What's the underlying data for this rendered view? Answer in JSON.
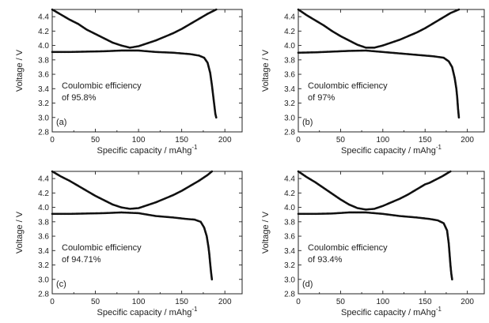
{
  "chart_data": [
    {
      "type": "scatter",
      "panel_label": "(a)",
      "annotation": [
        "Coulombic efficiency",
        "of 95.8%"
      ],
      "xlabel": "Specific capacity / mAhg",
      "xlabel_sup": "-1",
      "ylabel": "Voltage / V",
      "xlim": [
        0,
        220
      ],
      "ylim": [
        2.8,
        4.5
      ],
      "xticks": [
        "0",
        "50",
        "100",
        "150",
        "200"
      ],
      "yticks": [
        "2.8",
        "3.0",
        "3.2",
        "3.4",
        "3.6",
        "3.8",
        "4.0",
        "4.2",
        "4.4"
      ],
      "grid": false,
      "legend": "none",
      "series": [
        {
          "x": [
            0,
            20,
            40,
            60,
            80,
            100,
            120,
            140,
            160,
            170,
            176,
            180,
            183,
            185,
            186,
            187,
            188,
            189,
            190
          ],
          "y": [
            3.91,
            3.91,
            3.915,
            3.92,
            3.93,
            3.93,
            3.91,
            3.9,
            3.88,
            3.86,
            3.83,
            3.76,
            3.62,
            3.45,
            3.35,
            3.25,
            3.15,
            3.05,
            3.0
          ]
        },
        {
          "x": [
            0,
            10,
            20,
            30,
            40,
            50,
            60,
            70,
            80,
            90,
            100,
            110,
            120,
            130,
            140,
            150,
            160,
            170,
            180,
            190
          ],
          "y": [
            4.5,
            4.43,
            4.36,
            4.3,
            4.22,
            4.16,
            4.1,
            4.04,
            4.0,
            3.97,
            3.99,
            4.03,
            4.07,
            4.12,
            4.17,
            4.23,
            4.3,
            4.37,
            4.44,
            4.5
          ]
        }
      ]
    },
    {
      "type": "scatter",
      "panel_label": "(b)",
      "annotation": [
        "Coulombic efficiency",
        "of 97%"
      ],
      "xlabel": "Specific capacity / mAhg",
      "xlabel_sup": "-1",
      "ylabel": "Voltage / V",
      "xlim": [
        0,
        220
      ],
      "ylim": [
        2.8,
        4.5
      ],
      "xticks": [
        "0",
        "50",
        "100",
        "150",
        "200"
      ],
      "yticks": [
        "2.8",
        "3.0",
        "3.2",
        "3.4",
        "3.6",
        "3.8",
        "4.0",
        "4.2",
        "4.4"
      ],
      "grid": false,
      "legend": "none",
      "series": [
        {
          "x": [
            0,
            20,
            40,
            60,
            80,
            100,
            120,
            140,
            160,
            172,
            178,
            182,
            185,
            187,
            188,
            189,
            190
          ],
          "y": [
            3.9,
            3.905,
            3.915,
            3.925,
            3.93,
            3.91,
            3.89,
            3.87,
            3.85,
            3.83,
            3.78,
            3.7,
            3.55,
            3.4,
            3.28,
            3.12,
            3.0
          ]
        },
        {
          "x": [
            0,
            10,
            20,
            30,
            40,
            50,
            60,
            70,
            80,
            90,
            100,
            110,
            120,
            130,
            140,
            150,
            160,
            170,
            180,
            190
          ],
          "y": [
            4.5,
            4.42,
            4.35,
            4.28,
            4.2,
            4.13,
            4.07,
            4.01,
            3.97,
            3.97,
            4.0,
            4.04,
            4.08,
            4.13,
            4.18,
            4.24,
            4.31,
            4.38,
            4.45,
            4.5
          ]
        }
      ]
    },
    {
      "type": "scatter",
      "panel_label": "(c)",
      "annotation": [
        "Coulombic efficiency",
        "of 94.71%"
      ],
      "xlabel": "Specific capacity / mAhg",
      "xlabel_sup": "-1",
      "ylabel": "Voltage / V",
      "xlim": [
        0,
        220
      ],
      "ylim": [
        2.8,
        4.5
      ],
      "xticks": [
        "0",
        "50",
        "100",
        "150",
        "200"
      ],
      "yticks": [
        "2.8",
        "3.0",
        "3.2",
        "3.4",
        "3.6",
        "3.8",
        "4.0",
        "4.2",
        "4.4"
      ],
      "grid": false,
      "legend": "none",
      "series": [
        {
          "x": [
            0,
            20,
            40,
            60,
            80,
            100,
            120,
            140,
            155,
            165,
            172,
            176,
            179,
            181,
            182,
            183,
            184,
            185
          ],
          "y": [
            3.91,
            3.91,
            3.915,
            3.92,
            3.93,
            3.92,
            3.88,
            3.86,
            3.84,
            3.83,
            3.8,
            3.72,
            3.6,
            3.45,
            3.35,
            3.22,
            3.1,
            3.0
          ]
        },
        {
          "x": [
            0,
            10,
            20,
            30,
            40,
            50,
            60,
            70,
            80,
            90,
            100,
            110,
            120,
            130,
            140,
            150,
            160,
            170,
            180,
            185
          ],
          "y": [
            4.5,
            4.43,
            4.37,
            4.3,
            4.23,
            4.16,
            4.1,
            4.04,
            4.0,
            3.98,
            3.99,
            4.03,
            4.07,
            4.12,
            4.17,
            4.23,
            4.3,
            4.37,
            4.45,
            4.5
          ]
        }
      ]
    },
    {
      "type": "scatter",
      "panel_label": "(d)",
      "annotation": [
        "Coulombic efficiency",
        "of 93.4%"
      ],
      "xlabel": "Specific capacity / mAhg",
      "xlabel_sup": "-1",
      "ylabel": "Voltage / V",
      "xlim": [
        0,
        220
      ],
      "ylim": [
        2.8,
        4.5
      ],
      "xticks": [
        "0",
        "50",
        "100",
        "150",
        "200"
      ],
      "yticks": [
        "2.8",
        "3.0",
        "3.2",
        "3.4",
        "3.6",
        "3.8",
        "4.0",
        "4.2",
        "4.4"
      ],
      "grid": false,
      "legend": "none",
      "series": [
        {
          "x": [
            0,
            20,
            40,
            60,
            80,
            100,
            120,
            140,
            155,
            165,
            172,
            176,
            178,
            179,
            180,
            181,
            182
          ],
          "y": [
            3.91,
            3.91,
            3.915,
            3.93,
            3.93,
            3.91,
            3.88,
            3.86,
            3.84,
            3.82,
            3.78,
            3.68,
            3.5,
            3.35,
            3.2,
            3.08,
            3.0
          ]
        },
        {
          "x": [
            0,
            10,
            20,
            30,
            40,
            50,
            60,
            70,
            80,
            90,
            100,
            110,
            120,
            130,
            140,
            150,
            155,
            160,
            170,
            180
          ],
          "y": [
            4.5,
            4.42,
            4.35,
            4.27,
            4.19,
            4.11,
            4.04,
            3.99,
            3.97,
            3.98,
            4.02,
            4.07,
            4.12,
            4.18,
            4.25,
            4.32,
            4.34,
            4.37,
            4.43,
            4.5
          ]
        }
      ]
    }
  ]
}
